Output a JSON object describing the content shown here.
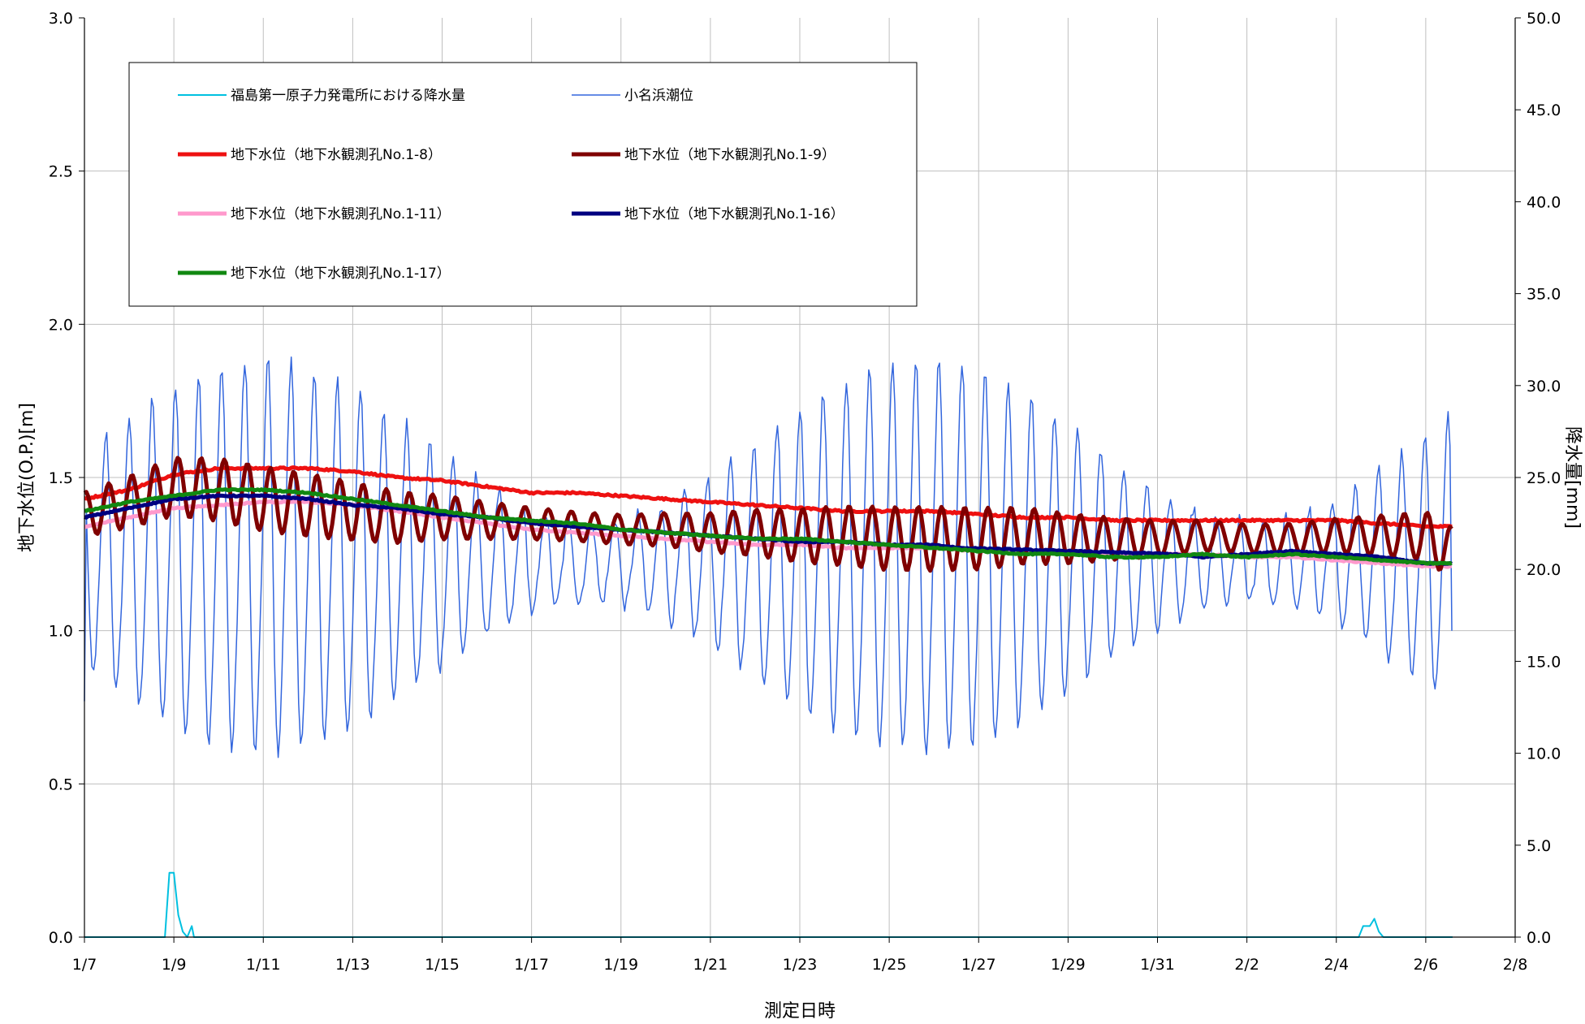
{
  "chart_data": {
    "type": "line",
    "title": "",
    "xlabel": "測定日時",
    "ylabel_left": "地下水位(O.P.)[m]",
    "ylabel_right": "降水量[mm]",
    "x_ticks": [
      "1/7",
      "1/9",
      "1/11",
      "1/13",
      "1/15",
      "1/17",
      "1/19",
      "1/21",
      "1/23",
      "1/25",
      "1/27",
      "1/29",
      "1/31",
      "2/2",
      "2/4",
      "2/6",
      "2/8"
    ],
    "x_range_days": [
      0,
      32
    ],
    "ylim_left": [
      0.0,
      3.0
    ],
    "ylim_right": [
      0.0,
      50.0
    ],
    "y_ticks_left": [
      "0.0",
      "0.5",
      "1.0",
      "1.5",
      "2.0",
      "2.5",
      "3.0"
    ],
    "y_ticks_right": [
      "0.0",
      "5.0",
      "10.0",
      "15.0",
      "20.0",
      "25.0",
      "30.0",
      "35.0",
      "40.0",
      "45.0",
      "50.0"
    ],
    "grid": true,
    "legend_position": "top-left",
    "series": [
      {
        "name": "福島第一原子力発電所における降水量",
        "axis": "right",
        "color": "#00c0e0",
        "width": 2,
        "points": [
          [
            0,
            0
          ],
          [
            1.8,
            0
          ],
          [
            1.9,
            3.5
          ],
          [
            2.0,
            3.5
          ],
          [
            2.1,
            1.2
          ],
          [
            2.2,
            0.3
          ],
          [
            2.3,
            0
          ],
          [
            2.4,
            0.6
          ],
          [
            2.45,
            0
          ],
          [
            28.5,
            0
          ],
          [
            28.6,
            0.6
          ],
          [
            28.75,
            0.6
          ],
          [
            28.85,
            1.0
          ],
          [
            28.95,
            0.3
          ],
          [
            29.05,
            0
          ],
          [
            30.6,
            0
          ]
        ]
      },
      {
        "name": "小名浜潮位",
        "axis": "left",
        "color": "#3366dd",
        "width": 1.5,
        "tide": {
          "start": 0,
          "end": 30.6,
          "period": 0.5175,
          "mean": 1.22,
          "amp_base": 0.38,
          "amp_mod": 0.25,
          "spring_period": 14.76,
          "spring_phase": -1.7,
          "start_value": 0.77,
          "end_value": 1.0
        }
      },
      {
        "name": "地下水位（地下水観測孔No.1-8）",
        "axis": "left",
        "color": "#ee1111",
        "width": 5,
        "points": [
          [
            0,
            1.43
          ],
          [
            1,
            1.46
          ],
          [
            2,
            1.51
          ],
          [
            3,
            1.53
          ],
          [
            4,
            1.53
          ],
          [
            5,
            1.53
          ],
          [
            6,
            1.52
          ],
          [
            7,
            1.5
          ],
          [
            8,
            1.49
          ],
          [
            9,
            1.47
          ],
          [
            10,
            1.45
          ],
          [
            11,
            1.45
          ],
          [
            12,
            1.44
          ],
          [
            13,
            1.43
          ],
          [
            14,
            1.42
          ],
          [
            15,
            1.41
          ],
          [
            16,
            1.4
          ],
          [
            17,
            1.39
          ],
          [
            18,
            1.39
          ],
          [
            19,
            1.39
          ],
          [
            20,
            1.38
          ],
          [
            21,
            1.37
          ],
          [
            22,
            1.37
          ],
          [
            23,
            1.36
          ],
          [
            24,
            1.36
          ],
          [
            25,
            1.36
          ],
          [
            26,
            1.36
          ],
          [
            27,
            1.36
          ],
          [
            28,
            1.36
          ],
          [
            29,
            1.35
          ],
          [
            30,
            1.34
          ],
          [
            30.6,
            1.34
          ]
        ]
      },
      {
        "name": "地下水位（地下水観測孔No.1-9）",
        "axis": "left",
        "color": "#800000",
        "width": 5,
        "points": [
          [
            0,
            1.38
          ],
          [
            1,
            1.42
          ],
          [
            2,
            1.47
          ],
          [
            3,
            1.46
          ],
          [
            4,
            1.43
          ],
          [
            5,
            1.41
          ],
          [
            6,
            1.39
          ],
          [
            7,
            1.37
          ],
          [
            8,
            1.37
          ],
          [
            9,
            1.36
          ],
          [
            10,
            1.35
          ],
          [
            11,
            1.34
          ],
          [
            12,
            1.33
          ],
          [
            13,
            1.33
          ],
          [
            14,
            1.32
          ],
          [
            15,
            1.32
          ],
          [
            16,
            1.31
          ],
          [
            17,
            1.31
          ],
          [
            18,
            1.3
          ],
          [
            19,
            1.3
          ],
          [
            20,
            1.3
          ],
          [
            21,
            1.31
          ],
          [
            22,
            1.3
          ],
          [
            23,
            1.3
          ],
          [
            24,
            1.3
          ],
          [
            25,
            1.31
          ],
          [
            26,
            1.3
          ],
          [
            27,
            1.3
          ],
          [
            28,
            1.31
          ],
          [
            29,
            1.31
          ],
          [
            30,
            1.31
          ],
          [
            30.6,
            1.25
          ]
        ]
      },
      {
        "name": "地下水位（地下水観測孔No.1-11）",
        "axis": "left",
        "color": "#ff99cc",
        "width": 5,
        "points": [
          [
            0,
            1.34
          ],
          [
            1,
            1.37
          ],
          [
            2,
            1.4
          ],
          [
            3,
            1.41
          ],
          [
            4,
            1.42
          ],
          [
            5,
            1.42
          ],
          [
            6,
            1.41
          ],
          [
            7,
            1.39
          ],
          [
            8,
            1.37
          ],
          [
            9,
            1.35
          ],
          [
            10,
            1.33
          ],
          [
            11,
            1.32
          ],
          [
            12,
            1.31
          ],
          [
            13,
            1.3
          ],
          [
            14,
            1.29
          ],
          [
            15,
            1.28
          ],
          [
            16,
            1.28
          ],
          [
            17,
            1.27
          ],
          [
            18,
            1.27
          ],
          [
            19,
            1.27
          ],
          [
            20,
            1.26
          ],
          [
            21,
            1.26
          ],
          [
            22,
            1.26
          ],
          [
            23,
            1.25
          ],
          [
            24,
            1.25
          ],
          [
            25,
            1.25
          ],
          [
            26,
            1.24
          ],
          [
            27,
            1.24
          ],
          [
            28,
            1.23
          ],
          [
            29,
            1.22
          ],
          [
            30,
            1.21
          ],
          [
            30.6,
            1.21
          ]
        ]
      },
      {
        "name": "地下水位（地下水観測孔No.1-16）",
        "axis": "left",
        "color": "#000080",
        "width": 5,
        "points": [
          [
            0,
            1.37
          ],
          [
            1,
            1.4
          ],
          [
            2,
            1.43
          ],
          [
            3,
            1.44
          ],
          [
            4,
            1.44
          ],
          [
            5,
            1.43
          ],
          [
            6,
            1.41
          ],
          [
            7,
            1.4
          ],
          [
            8,
            1.38
          ],
          [
            9,
            1.37
          ],
          [
            10,
            1.35
          ],
          [
            11,
            1.34
          ],
          [
            12,
            1.33
          ],
          [
            13,
            1.32
          ],
          [
            14,
            1.31
          ],
          [
            15,
            1.3
          ],
          [
            16,
            1.29
          ],
          [
            17,
            1.29
          ],
          [
            18,
            1.28
          ],
          [
            19,
            1.28
          ],
          [
            19.6,
            1.27
          ],
          [
            24.3,
            1.25
          ],
          [
            25,
            1.24
          ],
          [
            26,
            1.25
          ],
          [
            27,
            1.26
          ],
          [
            28,
            1.25
          ],
          [
            29,
            1.24
          ],
          [
            30,
            1.22
          ],
          [
            30.6,
            1.22
          ]
        ]
      },
      {
        "name": "地下水位（地下水観測孔No.1-17）",
        "axis": "left",
        "color": "#118811",
        "width": 5,
        "points": [
          [
            0,
            1.39
          ],
          [
            1,
            1.42
          ],
          [
            2,
            1.44
          ],
          [
            3,
            1.46
          ],
          [
            4,
            1.46
          ],
          [
            5,
            1.45
          ],
          [
            6,
            1.43
          ],
          [
            7,
            1.41
          ],
          [
            8,
            1.39
          ],
          [
            9,
            1.37
          ],
          [
            10,
            1.36
          ],
          [
            11,
            1.35
          ],
          [
            12,
            1.33
          ],
          [
            13,
            1.32
          ],
          [
            14,
            1.31
          ],
          [
            15,
            1.3
          ],
          [
            16,
            1.3
          ],
          [
            17,
            1.29
          ],
          [
            18,
            1.28
          ],
          [
            19,
            1.27
          ],
          [
            20,
            1.26
          ],
          [
            21,
            1.25
          ],
          [
            22,
            1.25
          ],
          [
            23,
            1.24
          ],
          [
            24,
            1.24
          ],
          [
            25,
            1.25
          ],
          [
            26,
            1.24
          ],
          [
            27,
            1.25
          ],
          [
            28,
            1.24
          ],
          [
            29,
            1.23
          ],
          [
            30,
            1.22
          ],
          [
            30.6,
            1.22
          ]
        ]
      }
    ]
  }
}
